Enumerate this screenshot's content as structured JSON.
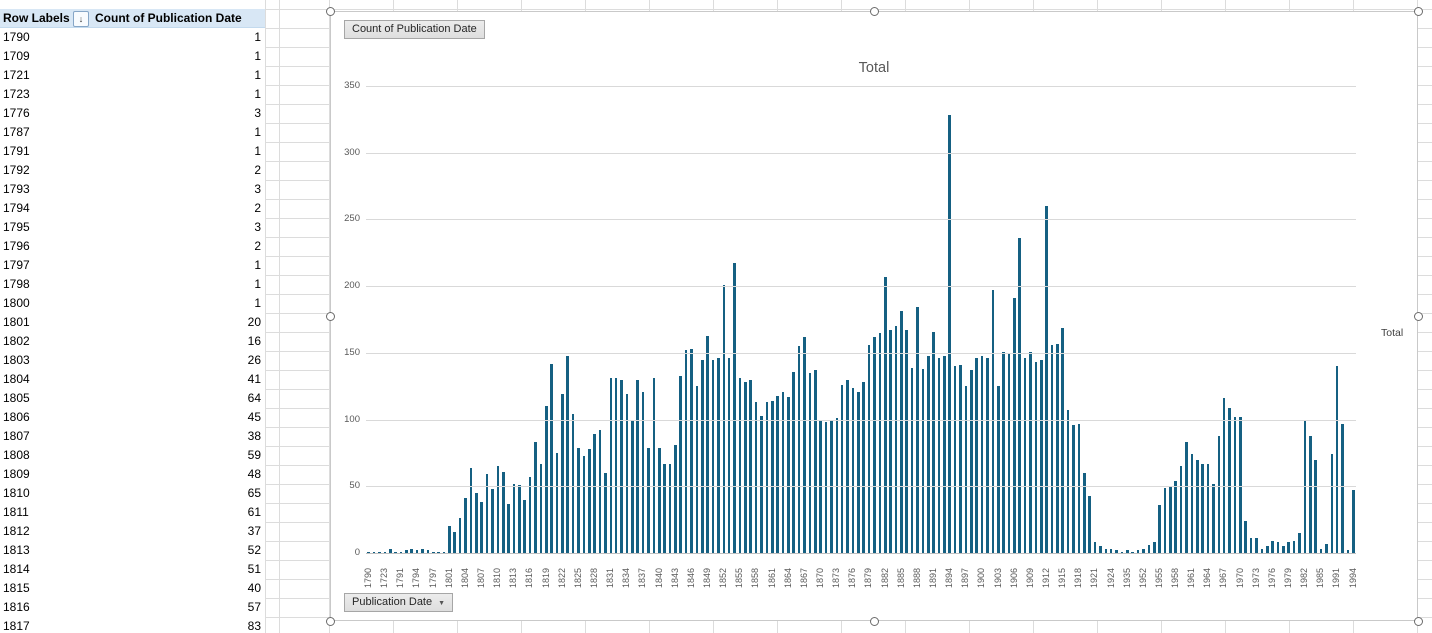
{
  "sheet": {
    "pivot_table": {
      "col_headers": [
        "Row Labels",
        "Count of Publication Date"
      ],
      "filter_icon": "sort-filter-arrow",
      "header_fill": "#d8e7f5",
      "rows": [
        {
          "label": "1790",
          "count": 1
        },
        {
          "label": "1709",
          "count": 1
        },
        {
          "label": "1721",
          "count": 1
        },
        {
          "label": "1723",
          "count": 1
        },
        {
          "label": "1776",
          "count": 3
        },
        {
          "label": "1787",
          "count": 1
        },
        {
          "label": "1791",
          "count": 1
        },
        {
          "label": "1792",
          "count": 2
        },
        {
          "label": "1793",
          "count": 3
        },
        {
          "label": "1794",
          "count": 2
        },
        {
          "label": "1795",
          "count": 3
        },
        {
          "label": "1796",
          "count": 2
        },
        {
          "label": "1797",
          "count": 1
        },
        {
          "label": "1798",
          "count": 1
        },
        {
          "label": "1800",
          "count": 1
        },
        {
          "label": "1801",
          "count": 20
        },
        {
          "label": "1802",
          "count": 16
        },
        {
          "label": "1803",
          "count": 26
        },
        {
          "label": "1804",
          "count": 41
        },
        {
          "label": "1805",
          "count": 64
        },
        {
          "label": "1806",
          "count": 45
        },
        {
          "label": "1807",
          "count": 38
        },
        {
          "label": "1808",
          "count": 59
        },
        {
          "label": "1809",
          "count": 48
        },
        {
          "label": "1810",
          "count": 65
        },
        {
          "label": "1811",
          "count": 61
        },
        {
          "label": "1812",
          "count": 37
        },
        {
          "label": "1813",
          "count": 52
        },
        {
          "label": "1814",
          "count": 51
        },
        {
          "label": "1815",
          "count": 40
        },
        {
          "label": "1816",
          "count": 57
        },
        {
          "label": "1817",
          "count": 83
        }
      ]
    }
  },
  "chart": {
    "field_button_top": "Count of Publication Date",
    "field_button_bottom": "Publication Date",
    "title": "Total",
    "legend_label": "Total",
    "bar_color": "#156082",
    "axis_text_color": "#595959"
  },
  "chart_data": {
    "type": "bar",
    "title": "Total",
    "xlabel": "Publication Date",
    "ylabel": "",
    "ylim": [
      0,
      350
    ],
    "y_ticks": [
      0,
      50,
      100,
      150,
      200,
      250,
      300,
      350
    ],
    "grid": true,
    "legend_position": "right",
    "x_tick_interval": 3,
    "categories": [
      "1790",
      "1709",
      "1721",
      "1723",
      "1776",
      "1787",
      "1791",
      "1792",
      "1793",
      "1794",
      "1795",
      "1796",
      "1797",
      "1798",
      "1800",
      "1801",
      "1802",
      "1803",
      "1804",
      "1805",
      "1806",
      "1807",
      "1808",
      "1809",
      "1810",
      "1811",
      "1812",
      "1813",
      "1814",
      "1815",
      "1816",
      "1817",
      "1818",
      "1819",
      "1820",
      "1821",
      "1822",
      "1823",
      "1824",
      "1825",
      "1826",
      "1827",
      "1828",
      "1829",
      "1830",
      "1831",
      "1832",
      "1833",
      "1834",
      "1835",
      "1836",
      "1837",
      "1838",
      "1839",
      "1840",
      "1841",
      "1842",
      "1843",
      "1844",
      "1845",
      "1846",
      "1847",
      "1848",
      "1849",
      "1850",
      "1851",
      "1852",
      "1853",
      "1854",
      "1855",
      "1856",
      "1857",
      "1858",
      "1859",
      "1860",
      "1861",
      "1862",
      "1863",
      "1864",
      "1865",
      "1866",
      "1867",
      "1868",
      "1869",
      "1870",
      "1871",
      "1872",
      "1873",
      "1874",
      "1875",
      "1876",
      "1877",
      "1878",
      "1879",
      "1880",
      "1881",
      "1882",
      "1883",
      "1884",
      "1885",
      "1886",
      "1887",
      "1888",
      "1889",
      "1890",
      "1891",
      "1892",
      "1893",
      "1894",
      "1895",
      "1896",
      "1897",
      "1898",
      "1899",
      "1900",
      "1901",
      "1902",
      "1903",
      "1904",
      "1905",
      "1906",
      "1907",
      "1908",
      "1909",
      "1910",
      "1911",
      "1912",
      "1913",
      "1914",
      "1915",
      "1916",
      "1917",
      "1918",
      "1919",
      "1920",
      "1921",
      "1922",
      "1923",
      "1924",
      "1926",
      "1930",
      "1935",
      "1940",
      "1947",
      "1952",
      "1953",
      "1954",
      "1955",
      "1956",
      "1957",
      "1958",
      "1959",
      "1960",
      "1961",
      "1962",
      "1963",
      "1964",
      "1965",
      "1966",
      "1967",
      "1968",
      "1969",
      "1970",
      "1971",
      "1972",
      "1973",
      "1974",
      "1975",
      "1976",
      "1977",
      "1978",
      "1979",
      "1980",
      "1981",
      "1982",
      "1983",
      "1984",
      "1985",
      "1987",
      "1989",
      "1991",
      "1992",
      "1993",
      "1994"
    ],
    "series": [
      {
        "name": "Total",
        "values": [
          1,
          1,
          1,
          1,
          3,
          1,
          1,
          2,
          3,
          2,
          3,
          2,
          1,
          1,
          1,
          20,
          16,
          26,
          41,
          64,
          45,
          38,
          59,
          48,
          65,
          61,
          37,
          52,
          51,
          40,
          57,
          83,
          67,
          110,
          142,
          75,
          119,
          148,
          104,
          79,
          73,
          78,
          89,
          92,
          60,
          131,
          131,
          130,
          119,
          100,
          130,
          121,
          79,
          131,
          79,
          67,
          67,
          81,
          133,
          152,
          153,
          125,
          145,
          163,
          145,
          146,
          201,
          146,
          217,
          131,
          128,
          130,
          113,
          103,
          113,
          114,
          118,
          121,
          117,
          136,
          155,
          162,
          135,
          137,
          99,
          98,
          100,
          101,
          126,
          130,
          124,
          121,
          128,
          156,
          162,
          165,
          207,
          167,
          170,
          181,
          167,
          139,
          184,
          138,
          148,
          166,
          146,
          148,
          328,
          140,
          141,
          125,
          137,
          146,
          148,
          146,
          197,
          125,
          151,
          150,
          191,
          236,
          146,
          151,
          143,
          145,
          260,
          156,
          157,
          169,
          107,
          96,
          97,
          60,
          43,
          8,
          5,
          3,
          3,
          2,
          1,
          2,
          1,
          2,
          3,
          6,
          8,
          36,
          49,
          50,
          54,
          65,
          83,
          74,
          70,
          67,
          67,
          52,
          88,
          116,
          109,
          102,
          102,
          24,
          11,
          11,
          3,
          5,
          9,
          8,
          5,
          8,
          9,
          15,
          100,
          88,
          70,
          3,
          7,
          74,
          140,
          97,
          2,
          47
        ]
      }
    ]
  }
}
